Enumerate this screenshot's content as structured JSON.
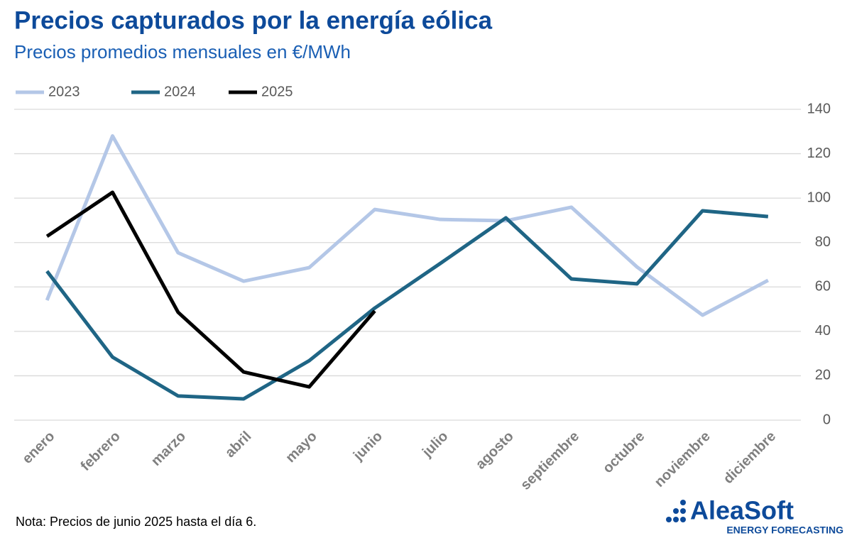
{
  "chart_data": {
    "type": "line",
    "title": "Precios capturados por la energía eólica",
    "subtitle": "Precios promedios mensuales en €/MWh",
    "categories": [
      "enero",
      "febrero",
      "marzo",
      "abril",
      "mayo",
      "junio",
      "julio",
      "agosto",
      "septiembre",
      "octubre",
      "noviembre",
      "diciembre"
    ],
    "series": [
      {
        "name": "2023",
        "color": "#b4c7e7",
        "values": [
          54,
          128,
          75.4,
          62.6,
          68.7,
          94.9,
          90.4,
          89.8,
          95.9,
          69,
          47.3,
          63
        ]
      },
      {
        "name": "2024",
        "color": "#1f6585",
        "values": [
          67.1,
          28.4,
          10.9,
          9.6,
          26.8,
          50.5,
          70.6,
          91.1,
          63.6,
          61.4,
          94.3,
          91.7
        ]
      },
      {
        "name": "2025",
        "color": "#000000",
        "values": [
          82.8,
          102.6,
          48.6,
          21.7,
          15,
          49.2,
          null,
          null,
          null,
          null,
          null,
          null
        ]
      }
    ],
    "ylim": [
      0,
      140
    ],
    "yticks": [
      0,
      20,
      40,
      60,
      80,
      100,
      120,
      140
    ],
    "grid": true,
    "legend": "top-left",
    "note": "Nota: Precios de junio 2025 hasta el día 6."
  },
  "logo": {
    "name": "AleaSoft",
    "tagline": "ENERGY FORECASTING"
  }
}
